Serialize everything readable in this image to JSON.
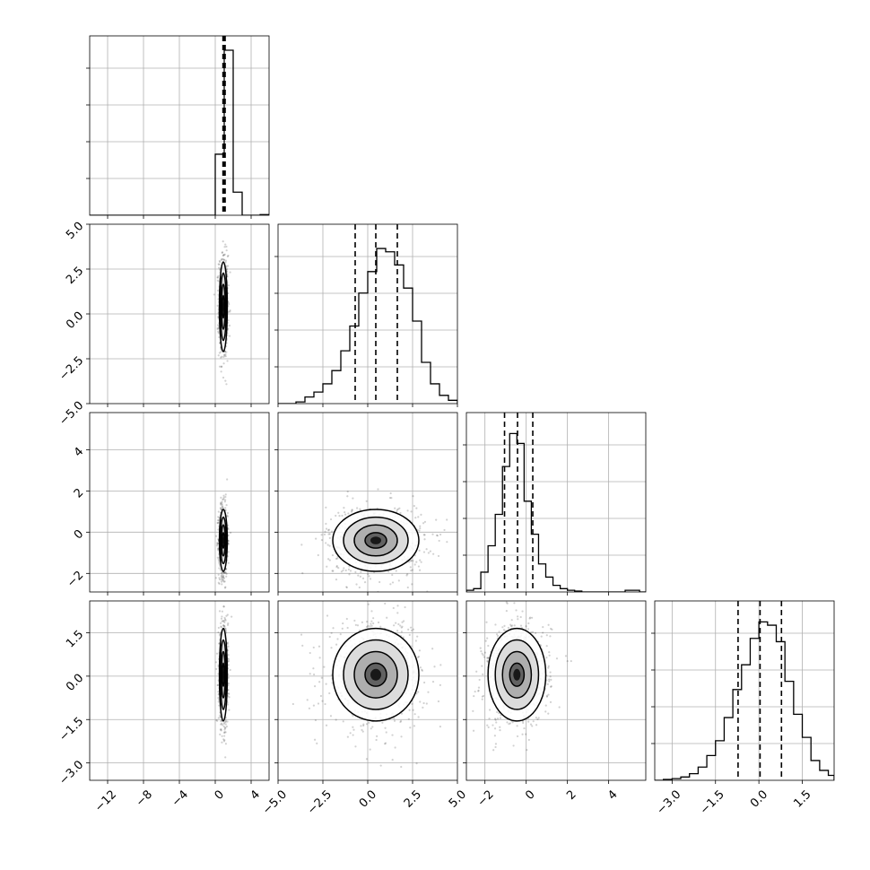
{
  "chart_data": {
    "type": "corner",
    "n_params": 4,
    "grid": true,
    "quantiles": [
      0.16,
      0.5,
      0.84
    ],
    "colors": {
      "hist": "#000000",
      "grid": "#b0b0b0",
      "points": "#000000",
      "contour": "#000000"
    },
    "ranges": [
      [
        -14,
        6
      ],
      [
        -5,
        5
      ],
      [
        -2.9,
        5.8
      ],
      [
        -3.6,
        2.6
      ]
    ],
    "ticks": [
      {
        "values": [
          -12,
          -8,
          -4,
          0,
          4
        ],
        "labels": [
          "−12",
          "−8",
          "−4",
          "0",
          "4"
        ]
      },
      {
        "values": [
          -5,
          -2.5,
          0,
          2.5,
          5
        ],
        "labels": [
          "−5.0",
          "−2.5",
          "0.0",
          "2.5",
          "5.0"
        ]
      },
      {
        "values": [
          -2,
          0,
          2,
          4
        ],
        "labels": [
          "−2",
          "0",
          "2",
          "4"
        ]
      },
      {
        "values": [
          -3,
          -1.5,
          0,
          1.5
        ],
        "labels": [
          "−3.0",
          "−1.5",
          "0.0",
          "1.5"
        ]
      }
    ],
    "marginals": [
      {
        "param": 0,
        "bins": [
          -14,
          -13,
          -12,
          -11,
          -10,
          -9,
          -8,
          -7,
          -6,
          -5,
          -4,
          -3,
          -2,
          -1,
          0,
          1,
          2,
          3,
          4,
          5,
          6
        ],
        "counts": [
          0,
          0,
          0,
          0,
          0,
          0,
          0,
          0,
          0,
          0,
          0,
          0,
          0,
          0,
          0.37,
          1.0,
          0.14,
          0,
          0,
          0.004
        ],
        "quantile_values": [
          0.86,
          1.0,
          1.1
        ]
      },
      {
        "param": 1,
        "bins": [
          -5,
          -4.5,
          -4,
          -3.5,
          -3,
          -2.5,
          -2,
          -1.5,
          -1,
          -0.5,
          0,
          0.5,
          1,
          1.5,
          2,
          2.5,
          3,
          3.5,
          4,
          4.5,
          5
        ],
        "counts": [
          0,
          0,
          0.01,
          0.04,
          0.07,
          0.12,
          0.2,
          0.32,
          0.47,
          0.67,
          0.8,
          0.94,
          0.92,
          0.84,
          0.7,
          0.5,
          0.25,
          0.12,
          0.05,
          0.02
        ],
        "quantile_values": [
          -0.7,
          0.45,
          1.65
        ]
      },
      {
        "param": 2,
        "bins": [
          -2.9,
          -2.55,
          -2.2,
          -1.85,
          -1.5,
          -1.15,
          -0.8,
          -0.45,
          -0.1,
          0.25,
          0.6,
          0.95,
          1.3,
          1.65,
          2.0,
          2.35,
          2.7,
          3.05,
          3.4,
          3.75,
          4.1,
          4.45,
          4.8,
          5.15,
          5.5,
          5.8
        ],
        "counts": [
          0.01,
          0.02,
          0.12,
          0.28,
          0.47,
          0.76,
          0.96,
          0.9,
          0.55,
          0.35,
          0.17,
          0.09,
          0.04,
          0.02,
          0.01,
          0.005,
          0,
          0,
          0,
          0,
          0,
          0,
          0.01,
          0.01,
          0
        ],
        "quantile_values": [
          -1.05,
          -0.42,
          0.32
        ]
      },
      {
        "param": 3,
        "bins": [
          -3.6,
          -3.3,
          -3.0,
          -2.7,
          -2.4,
          -2.1,
          -1.8,
          -1.5,
          -1.2,
          -0.9,
          -0.6,
          -0.3,
          0,
          0.3,
          0.6,
          0.9,
          1.2,
          1.5,
          1.8,
          2.1,
          2.4,
          2.6
        ],
        "counts": [
          0,
          0.005,
          0.01,
          0.02,
          0.04,
          0.08,
          0.15,
          0.24,
          0.38,
          0.55,
          0.7,
          0.86,
          0.96,
          0.94,
          0.84,
          0.6,
          0.4,
          0.26,
          0.12,
          0.06,
          0.03
        ],
        "quantile_values": [
          -0.72,
          0.04,
          0.78
        ]
      }
    ],
    "pairs": [
      {
        "x": 0,
        "y": 1,
        "center": [
          0.9,
          0.4
        ],
        "sigma": [
          0.22,
          1.25
        ],
        "rho": 0.0
      },
      {
        "x": 0,
        "y": 2,
        "center": [
          0.9,
          -0.4
        ],
        "sigma": [
          0.22,
          0.75
        ],
        "rho": 0.0
      },
      {
        "x": 0,
        "y": 3,
        "center": [
          0.9,
          0.05
        ],
        "sigma": [
          0.22,
          0.8
        ],
        "rho": 0.0
      },
      {
        "x": 1,
        "y": 2,
        "center": [
          0.45,
          -0.4
        ],
        "sigma": [
          1.2,
          0.75
        ],
        "rho": 0.0
      },
      {
        "x": 1,
        "y": 3,
        "center": [
          0.45,
          0.05
        ],
        "sigma": [
          1.2,
          0.8
        ],
        "rho": 0.05
      },
      {
        "x": 2,
        "y": 3,
        "center": [
          -0.45,
          0.05
        ],
        "sigma": [
          0.7,
          0.8
        ],
        "rho": 0.05
      }
    ],
    "contour_levels_sigma": [
      0.5,
      1.0,
      1.5,
      2.0
    ]
  }
}
